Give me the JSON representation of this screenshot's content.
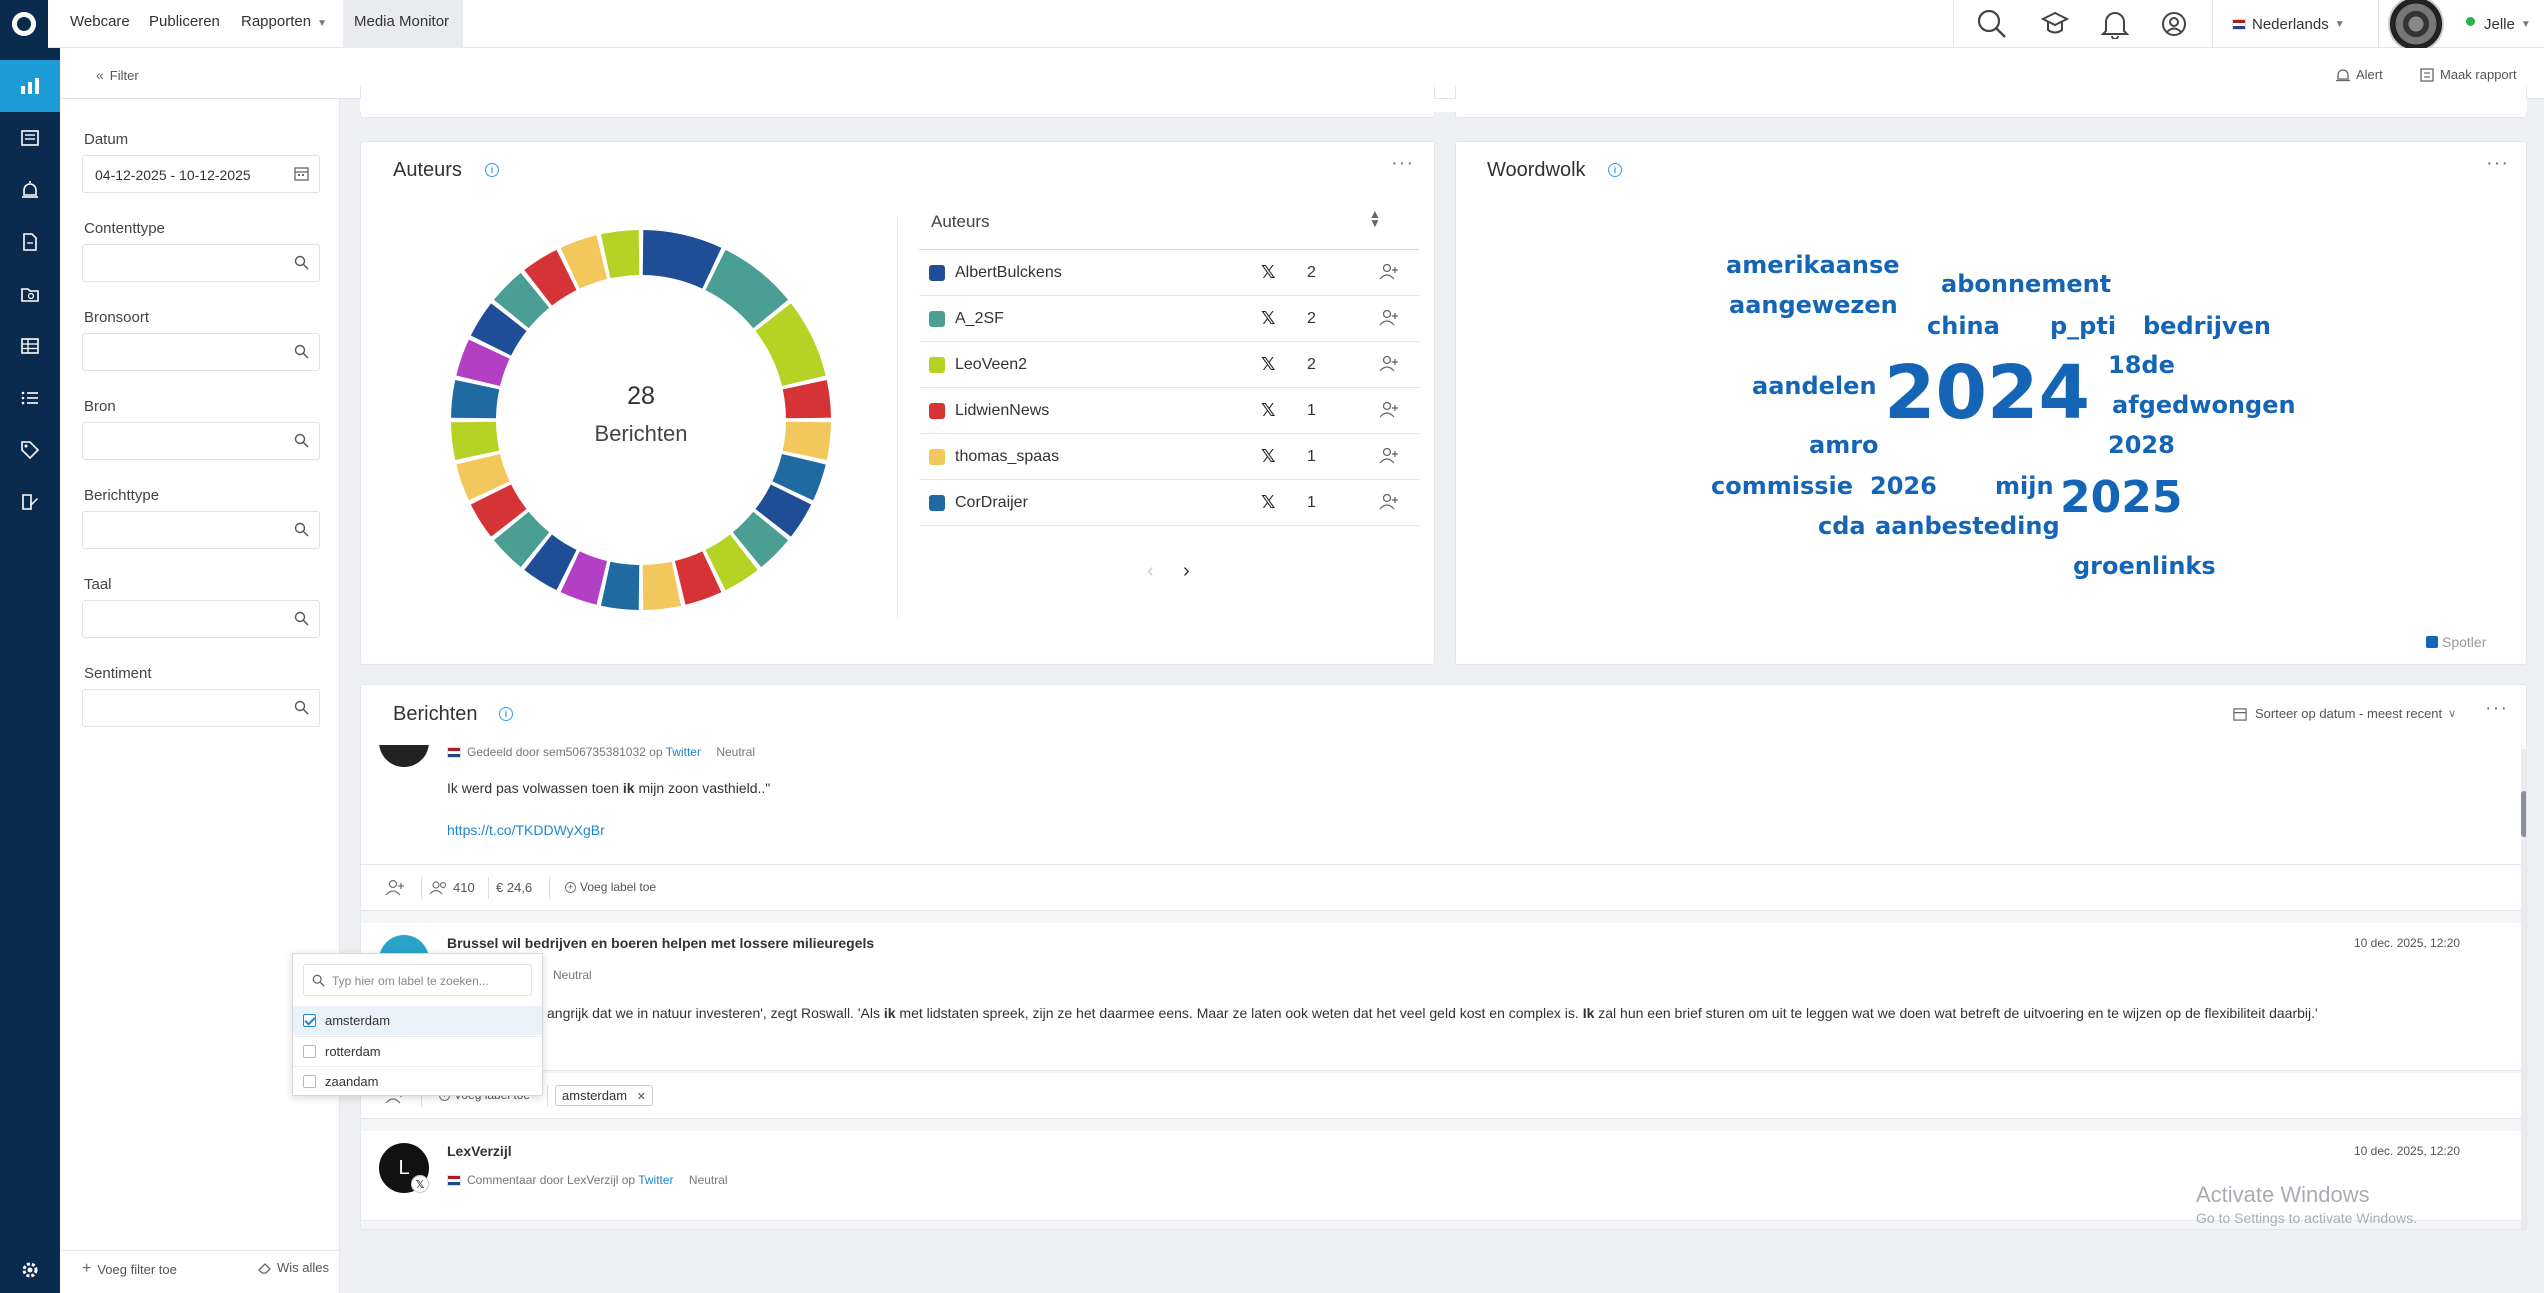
{
  "nav": {
    "items": [
      {
        "label": "Webcare"
      },
      {
        "label": "Publiceren"
      },
      {
        "label": "Rapporten"
      },
      {
        "label": "Media Monitor"
      }
    ],
    "language": "Nederlands",
    "user": "Jelle"
  },
  "subbar": {
    "filter_label": "Filter",
    "alert_label": "Alert",
    "report_label": "Maak rapport"
  },
  "filters": {
    "datum_label": "Datum",
    "datum_value": "04-12-2025 - 10-12-2025",
    "contenttype_label": "Contenttype",
    "bronsoort_label": "Bronsoort",
    "bron_label": "Bron",
    "berichttype_label": "Berichttype",
    "taal_label": "Taal",
    "sentiment_label": "Sentiment",
    "add_filter": "Voeg filter toe",
    "clear_all": "Wis alles"
  },
  "authors_card": {
    "title": "Auteurs",
    "total": "28",
    "total_label": "Berichten",
    "table_header": "Auteurs",
    "rows": [
      {
        "name": "AlbertBulckens",
        "count": "2",
        "color": "#1f4e96"
      },
      {
        "name": "A_2SF",
        "count": "2",
        "color": "#4a9e94"
      },
      {
        "name": "LeoVeen2",
        "count": "2",
        "color": "#b5d225"
      },
      {
        "name": "LidwienNews",
        "count": "1",
        "color": "#d63336"
      },
      {
        "name": "thomas_spaas",
        "count": "1",
        "color": "#f2c75c"
      },
      {
        "name": "CorDraijer",
        "count": "1",
        "color": "#1f6aa0"
      }
    ]
  },
  "chart_data": {
    "type": "pie",
    "style": "donut",
    "center_value": "28",
    "center_label": "Berichten",
    "categories": [
      "AlbertBulckens",
      "A_2SF",
      "LeoVeen2",
      "LidwienNews",
      "thomas_spaas",
      "CorDraijer"
    ],
    "values": [
      2,
      2,
      2,
      1,
      1,
      1
    ]
  },
  "wordcloud": {
    "title": "Woordwolk",
    "legend": "Spotler",
    "words": [
      {
        "text": "amerikaanse"
      },
      {
        "text": "abonnement"
      },
      {
        "text": "aangewezen"
      },
      {
        "text": "china"
      },
      {
        "text": "p_pti"
      },
      {
        "text": "bedrijven"
      },
      {
        "text": "18de"
      },
      {
        "text": "aandelen"
      },
      {
        "text": "2024"
      },
      {
        "text": "afgedwongen"
      },
      {
        "text": "amro"
      },
      {
        "text": "2028"
      },
      {
        "text": "commissie"
      },
      {
        "text": "2026"
      },
      {
        "text": "mijn"
      },
      {
        "text": "2025"
      },
      {
        "text": "cda"
      },
      {
        "text": "aanbesteding"
      },
      {
        "text": "groenlinks"
      }
    ]
  },
  "messages_card": {
    "title": "Berichten",
    "sort_label": "Sorteer op datum - meest recent",
    "msg1": {
      "meta_prefix": "Gedeeld door sem506735381032 op",
      "platform": "Twitter",
      "sentiment": "Neutral",
      "text_pre": "Ik werd pas volwassen toen ",
      "text_bold": "ik",
      "text_post": " mijn zoon vasthield..\"",
      "link": "https://t.co/TKDDWyXgBr",
      "reach": "410",
      "value": "24,6",
      "add_label": "Voeg label toe"
    },
    "msg2": {
      "title": "Brussel wil bedrijven en boeren helpen met lossere milieuregels",
      "date": "10 dec. 2025, 12:20",
      "sentiment": "Neutral",
      "text_a": "angrijk dat we in natuur investeren', zegt Roswall. 'Als ",
      "bold_a": "ik",
      "text_b": " met lidstaten spreek, zijn ze het daarmee eens. Maar ze laten ook weten dat het veel geld kost en complex is. ",
      "bold_b": "Ik",
      "text_c": " zal hun een brief sturen om uit te leggen wat we doen wat betreft de uitvoering en te wijzen op de flexibiliteit daarbij.'",
      "add_label": "Voeg label toe",
      "chip": "amsterdam"
    },
    "msg3": {
      "author": "LexVerzijl",
      "avatar_letter": "L",
      "date": "10 dec. 2025, 12:20",
      "meta_prefix": "Commentaar door LexVerzijl op",
      "platform": "Twitter",
      "sentiment": "Neutral"
    }
  },
  "label_dropdown": {
    "placeholder": "Typ hier om label te zoeken...",
    "options": [
      {
        "label": "amsterdam",
        "checked": true
      },
      {
        "label": "rotterdam",
        "checked": false
      },
      {
        "label": "zaandam",
        "checked": false
      }
    ]
  },
  "watermark": {
    "title": "Activate Windows",
    "subtitle": "Go to Settings to activate Windows."
  }
}
